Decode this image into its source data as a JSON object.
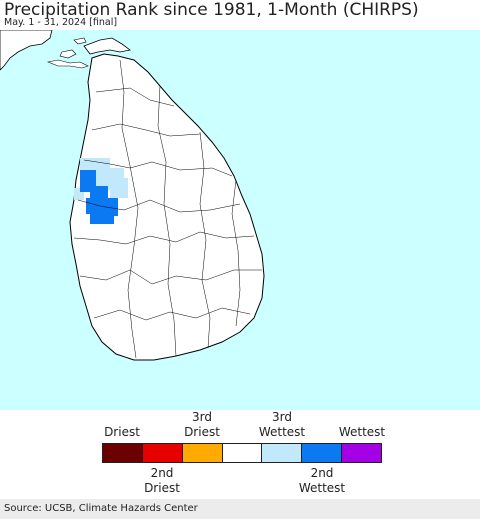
{
  "header": {
    "title": "Precipitation Rank since 1981, 1-Month (CHIRPS)",
    "subtitle": "May. 1 - 31, 2024 [final]"
  },
  "map": {
    "ocean_color": "#ccffff",
    "land_color": "#ffffff",
    "boundary_color": "#000000",
    "anomaly_colors": {
      "third_wettest": "#c2e8fb",
      "second_wettest": "#0a79f2"
    }
  },
  "legend": {
    "top_labels": [
      "Driest",
      "3rd\nDriest",
      "3rd\nWettest",
      "Wettest"
    ],
    "bottom_labels": [
      "2nd\nDriest",
      "2nd\nWettest"
    ],
    "colors": [
      "#6b0000",
      "#e60000",
      "#ffaa00",
      "#ffffff",
      "#c2e8fb",
      "#0a79f2",
      "#a300e6"
    ]
  },
  "footer": {
    "source": "Source: UCSB, Climate Hazards Center"
  }
}
